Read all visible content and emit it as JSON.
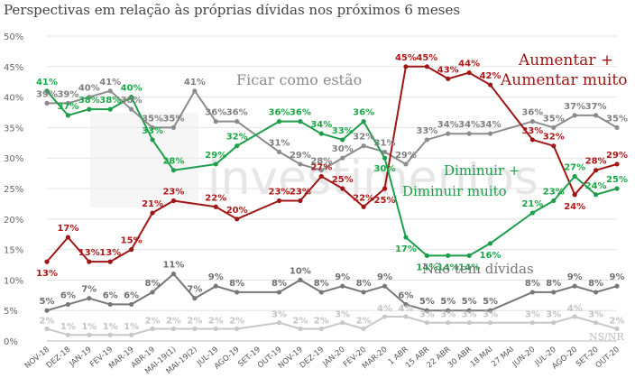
{
  "title": "Perspectivas em relação às próprias dívidas nos próximos 6 meses",
  "watermark": "investimentos",
  "chart_data": {
    "type": "line",
    "title": "Perspectivas em relação às próprias dívidas nos próximos 6 meses",
    "ylim": [
      0,
      50
    ],
    "y_ticks": [
      "0%",
      "5%",
      "10%",
      "15%",
      "20%",
      "25%",
      "30%",
      "35%",
      "40%",
      "45%",
      "50%"
    ],
    "y_tick_values": [
      0,
      5,
      10,
      15,
      20,
      25,
      30,
      35,
      40,
      45,
      50
    ],
    "grid": true,
    "categories": [
      "NOV-18",
      "DEZ-18",
      "JAN-19",
      "FEV-19",
      "MAR-19",
      "ABR-19",
      "MAI-19(1)",
      "MAI-19(2)",
      "JUL-19",
      "AGO-19",
      "SET-19",
      "OUT-19",
      "NOV-19",
      "DEZ-19",
      "JAN-20",
      "FEV-20",
      "MAR-20",
      "1 ABR",
      "15 ABR",
      "22 ABR",
      "30 ABR",
      "18 MAI",
      "27 MAI",
      "JUN-20",
      "JUL-20",
      "AGO-20",
      "SET-20",
      "OUT-20"
    ],
    "series": [
      {
        "key": "ficar",
        "name": "Ficar como estão",
        "color": "#8c8c8c",
        "label_color": "#808080",
        "values": [
          39,
          39,
          40,
          41,
          38,
          35,
          35,
          41,
          36,
          36,
          null,
          31,
          29,
          28,
          30,
          32,
          31,
          29,
          33,
          34,
          34,
          34,
          null,
          36,
          35,
          37,
          37,
          35
        ],
        "labels": [
          "39%",
          "39%",
          "40%",
          "41%",
          "38%",
          "35%",
          "35%",
          "41%",
          "36%",
          "36%",
          "",
          "31%",
          "29%",
          "28%",
          "30%",
          "32%",
          "31%",
          "29%",
          "33%",
          "34%",
          "34%",
          "34%",
          "",
          "36%",
          "35%",
          "37%",
          "37%",
          "35%"
        ]
      },
      {
        "key": "aumentar",
        "name": "Aumentar + Aumentar muito",
        "color": "#a01616",
        "label_color": "#b01818",
        "values": [
          13,
          17,
          13,
          13,
          15,
          21,
          23,
          null,
          22,
          20,
          null,
          23,
          23,
          27,
          25,
          22,
          25,
          45,
          45,
          43,
          44,
          42,
          null,
          33,
          32,
          24,
          28,
          29
        ],
        "labels": [
          "13%",
          "17%",
          "13%",
          "13%",
          "15%",
          "21%",
          "23%",
          "",
          "22%",
          "20%",
          "",
          "23%",
          "23%",
          "27%",
          "25%",
          "22%",
          "25%",
          "45%",
          "45%",
          "43%",
          "44%",
          "42%",
          "",
          "33%",
          "32%",
          "24%",
          "28%",
          "29%"
        ]
      },
      {
        "key": "diminuir",
        "name": "Diminuir + Diminuir muito",
        "color": "#1e9e4a",
        "label_color": "#1aa848",
        "values": [
          41,
          37,
          38,
          38,
          40,
          33,
          28,
          null,
          29,
          32,
          null,
          36,
          36,
          34,
          33,
          36,
          30,
          17,
          14,
          14,
          14,
          16,
          null,
          21,
          23,
          27,
          24,
          25
        ],
        "labels": [
          "41%",
          "37%",
          "38%",
          "38%",
          "40%",
          "33%",
          "28%",
          "",
          "29%",
          "32%",
          "",
          "36%",
          "36%",
          "34%",
          "33%",
          "36%",
          "30%",
          "17%",
          "14%",
          "14%",
          "14%",
          "16%",
          "",
          "21%",
          "23%",
          "27%",
          "24%",
          "25%"
        ]
      },
      {
        "key": "nao_tem",
        "name": "Não tem dívidas",
        "color": "#777777",
        "label_color": "#707070",
        "values": [
          5,
          6,
          7,
          6,
          6,
          8,
          11,
          7,
          9,
          8,
          null,
          8,
          10,
          8,
          9,
          8,
          9,
          6,
          5,
          5,
          5,
          5,
          null,
          8,
          8,
          9,
          8,
          9
        ],
        "labels": [
          "5%",
          "6%",
          "7%",
          "6%",
          "6%",
          "8%",
          "11%",
          "7%",
          "9%",
          "8%",
          "",
          "8%",
          "10%",
          "8%",
          "9%",
          "8%",
          "9%",
          "6%",
          "5%",
          "5%",
          "5%",
          "5%",
          "",
          "8%",
          "8%",
          "9%",
          "8%",
          "9%"
        ]
      },
      {
        "key": "nsnr",
        "name": "NS/NR",
        "color": "#c8c8c8",
        "label_color": "#c4c4c4",
        "values": [
          2,
          1,
          1,
          1,
          1,
          2,
          2,
          2,
          2,
          2,
          null,
          3,
          2,
          2,
          3,
          2,
          4,
          4,
          3,
          3,
          3,
          3,
          null,
          3,
          3,
          4,
          3,
          2
        ],
        "labels": [
          "2%",
          "1%",
          "1%",
          "1%",
          "1%",
          "2%",
          "2%",
          "2%",
          "2%",
          "2%",
          "",
          "3%",
          "2%",
          "2%",
          "3%",
          "2%",
          "4%",
          "4%",
          "3%",
          "3%",
          "3%",
          "3%",
          "",
          "3%",
          "3%",
          "4%",
          "3%",
          "2%"
        ]
      }
    ],
    "annotations": [
      {
        "text": "Ficar como estão",
        "series": "ficar"
      },
      {
        "text": "Aumentar +",
        "series": "aumentar"
      },
      {
        "text": "Aumentar muito",
        "series": "aumentar"
      },
      {
        "text": "Diminuir +",
        "series": "diminuir"
      },
      {
        "text": "Diminuir muito",
        "series": "diminuir"
      },
      {
        "text": "Não tem dívidas",
        "series": "nao_tem"
      },
      {
        "text": "NS/NR",
        "series": "nsnr"
      }
    ]
  }
}
